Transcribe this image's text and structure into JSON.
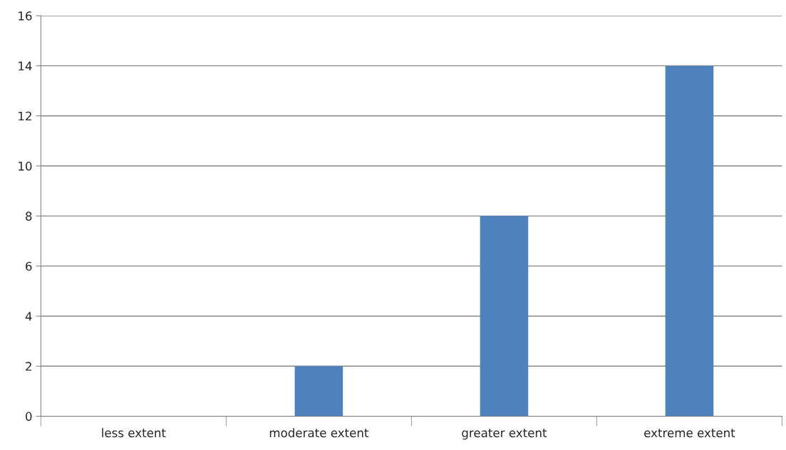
{
  "chart_data": {
    "type": "bar",
    "categories": [
      "less extent",
      "moderate extent",
      "greater extent",
      "extreme extent"
    ],
    "values": [
      0,
      2,
      8,
      14
    ],
    "color": "#4f81bd",
    "ylim": [
      0,
      16
    ],
    "yticks": [
      0,
      2,
      4,
      6,
      8,
      10,
      12,
      14,
      16
    ],
    "grid": "y",
    "legend": false
  }
}
